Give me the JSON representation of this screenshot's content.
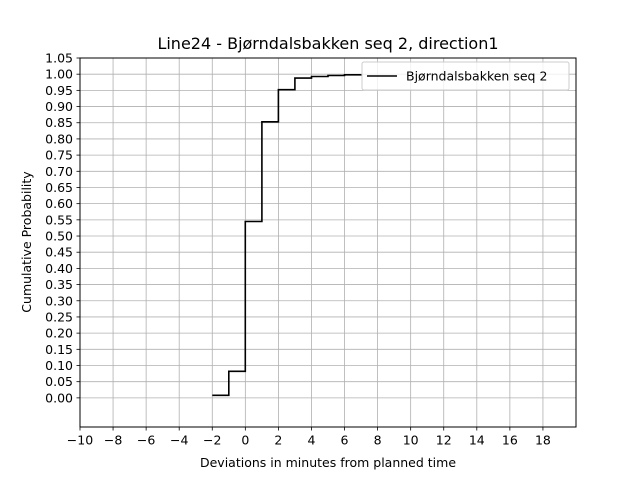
{
  "chart_data": {
    "type": "line",
    "drawstyle": "steps-post",
    "title": "Line24 - Bjørndalsbakken seq 2, direction1",
    "xlabel": "Deviations in minutes from planned time",
    "ylabel": "Cumulative Probability",
    "xlim": [
      -10,
      20
    ],
    "ylim": [
      -0.09,
      1.05
    ],
    "x_ticks": [
      -10,
      -8,
      -6,
      -4,
      -2,
      0,
      2,
      4,
      6,
      8,
      10,
      12,
      14,
      16,
      18
    ],
    "x_tick_labels": [
      "−10",
      "−8",
      "−6",
      "−4",
      "−2",
      "0",
      "2",
      "4",
      "6",
      "8",
      "10",
      "12",
      "14",
      "16",
      "18"
    ],
    "y_ticks": [
      0.0,
      0.05,
      0.1,
      0.15,
      0.2,
      0.25,
      0.3,
      0.35,
      0.4,
      0.45,
      0.5,
      0.55,
      0.6,
      0.65,
      0.7,
      0.75,
      0.8,
      0.85,
      0.9,
      0.95,
      1.0,
      1.05
    ],
    "y_tick_labels": [
      "0.00",
      "0.05",
      "0.10",
      "0.15",
      "0.20",
      "0.25",
      "0.30",
      "0.35",
      "0.40",
      "0.45",
      "0.50",
      "0.55",
      "0.60",
      "0.65",
      "0.70",
      "0.75",
      "0.80",
      "0.85",
      "0.90",
      "0.95",
      "1.00",
      "1.05"
    ],
    "grid": true,
    "legend_position": "top-right",
    "series": [
      {
        "name": "Bjørndalsbakken seq 2",
        "color": "#000000",
        "x": [
          -2,
          -1,
          0,
          1,
          2,
          3,
          4,
          5,
          6,
          7
        ],
        "y": [
          0.008,
          0.082,
          0.545,
          0.853,
          0.952,
          0.988,
          0.993,
          0.996,
          0.998,
          1.0
        ]
      }
    ]
  }
}
